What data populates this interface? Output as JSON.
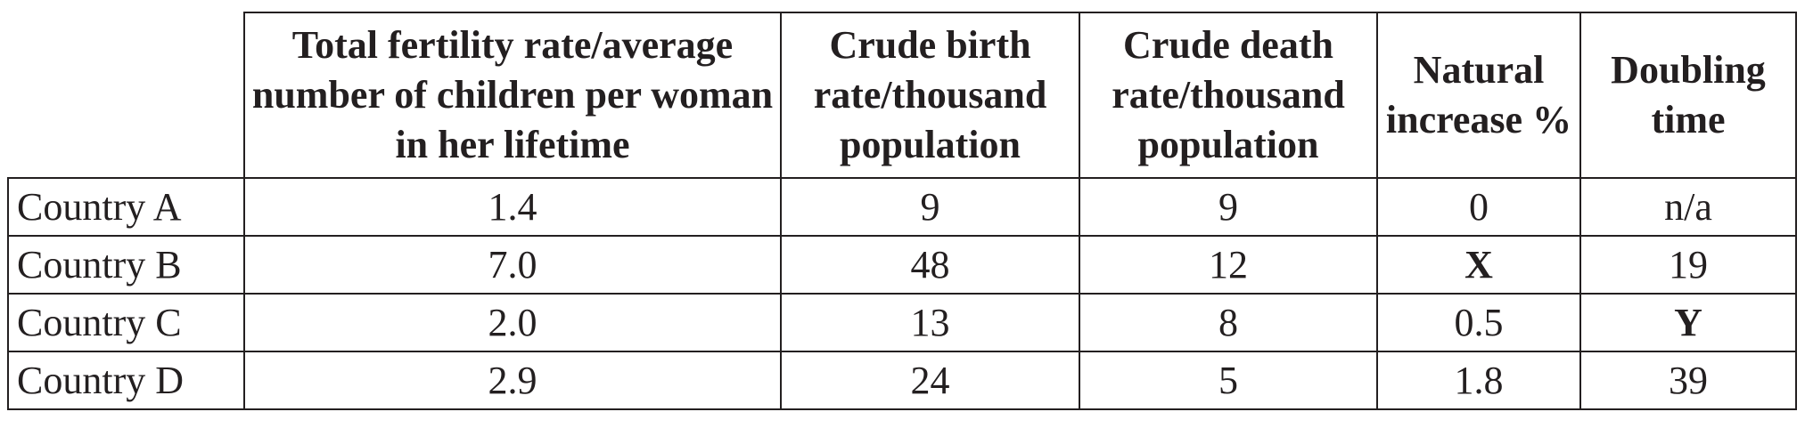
{
  "table": {
    "headers": [
      "",
      "Total fertility rate/average number of children per woman in her lifetime",
      "Crude birth rate/thousand population",
      "Crude death rate/thousand population",
      "Natural increase %",
      "Doubling time"
    ],
    "rows": [
      {
        "label": "Country A",
        "cells": [
          "1.4",
          "9",
          "9",
          "0",
          "n/a"
        ]
      },
      {
        "label": "Country B",
        "cells": [
          "7.0",
          "48",
          "12",
          "X",
          "19"
        ]
      },
      {
        "label": "Country C",
        "cells": [
          "2.0",
          "13",
          "8",
          "0.5",
          "Y"
        ]
      },
      {
        "label": "Country D",
        "cells": [
          "2.9",
          "24",
          "5",
          "1.8",
          "39"
        ]
      }
    ]
  }
}
